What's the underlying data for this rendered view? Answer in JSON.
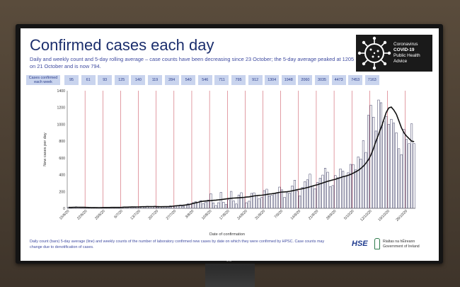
{
  "brand": {
    "tv_logo": "LG"
  },
  "slide": {
    "title": "Confirmed cases each day",
    "subtitle": "Daily and weekly count and 5-day rolling average – case counts have been decreasing since 23 October; the 5-day average peaked at 1205 on 21 October and is now 794.",
    "logo": {
      "line1": "Coronavirus",
      "line2": "COVID-19",
      "line3": "Public Health",
      "line4": "Advice",
      "icon": "virus-icon"
    },
    "weekly_label": "Cases confirmed each week",
    "weekly_counts": [
      "95",
      "61",
      "93",
      "125",
      "140",
      "119",
      "284",
      "540",
      "546",
      "711",
      "795",
      "912",
      "1304",
      "1948",
      "2060",
      "3035",
      "4473",
      "7453",
      "7163"
    ],
    "footer": "Daily count (bars) 5-day average (line) and weekly counts of the number of laboratory confirmed new cases by date on which they were confirmed by HPSC. Case counts may change due to denotification of cases.",
    "org_hse": "HSE",
    "org_gov_line1": "Rialtas na hÉireann",
    "org_gov_line2": "Government of Ireland"
  },
  "colors": {
    "title": "#1b2e6d",
    "text": "#3f4ba0",
    "bar_fill": "#ffffff",
    "bar_stroke": "#2a2a55",
    "line": "#111111",
    "week_divider": "#c43a4a",
    "weekly_cell": "#c9d4ee"
  },
  "chart_data": {
    "type": "bar",
    "xlabel": "Date of confirmation",
    "ylabel": "New cases per day",
    "ylim": [
      0,
      1400
    ],
    "yticks": [
      0,
      200,
      400,
      600,
      800,
      1000,
      1200,
      1400
    ],
    "grid": false,
    "x_tick_labels": [
      "15/6/20",
      "22/6/20",
      "29/6/20",
      "6/7/20",
      "13/7/20",
      "20/7/20",
      "27/7/20",
      "3/8/20",
      "10/8/20",
      "17/8/20",
      "24/8/20",
      "31/8/20",
      "7/9/20",
      "14/9/20",
      "21/9/20",
      "28/9/20",
      "5/10/20",
      "12/10/20",
      "19/10/20",
      "26/10/20"
    ],
    "series": [
      {
        "values": [
          12,
          10,
          14,
          18,
          9,
          11,
          15,
          8,
          7,
          10,
          12,
          6,
          9,
          8,
          14,
          11,
          9,
          12,
          15,
          7,
          10,
          13,
          18,
          12,
          14,
          20,
          11,
          19,
          21,
          17,
          16,
          25,
          18,
          22,
          27,
          14,
          19,
          24,
          16,
          13,
          30,
          22,
          28,
          35,
          41,
          25,
          38,
          55,
          48,
          68,
          80,
          74,
          92,
          56,
          75,
          98,
          174,
          66,
          34,
          67,
          190,
          73,
          45,
          102,
          202,
          88,
          52,
          159,
          186,
          130,
          67,
          85,
          178,
          185,
          154,
          114,
          130,
          211,
          228,
          150,
          157,
          180,
          188,
          253,
          220,
          131,
          186,
          181,
          267,
          335,
          205,
          148,
          250,
          318,
          340,
          407,
          263,
          234,
          308,
          360,
          396,
          478,
          430,
          258,
          271,
          390,
          364,
          470,
          442,
          386,
          423,
          523,
          522,
          458,
          613,
          587,
          806,
          666,
          1107,
          1227,
          1086,
          920,
          1290,
          1257,
          1031,
          1095,
          1000,
          1061,
          1014,
          900,
          710,
          640,
          940,
          820,
          770,
          1006,
          770
        ]
      },
      {
        "values": [
          11,
          11,
          12,
          13,
          13,
          12,
          12,
          11,
          10,
          9,
          9,
          9,
          8,
          9,
          10,
          10,
          10,
          11,
          11,
          11,
          11,
          12,
          14,
          14,
          15,
          16,
          16,
          17,
          18,
          19,
          19,
          20,
          21,
          21,
          21,
          20,
          19,
          19,
          20,
          21,
          22,
          25,
          29,
          31,
          34,
          36,
          40,
          44,
          50,
          58,
          66,
          72,
          80,
          85,
          88,
          90,
          92,
          95,
          98,
          101,
          104,
          108,
          112,
          116,
          120,
          122,
          124,
          126,
          128,
          131,
          134,
          137,
          142,
          148,
          152,
          154,
          156,
          160,
          165,
          170,
          174,
          178,
          184,
          190,
          194,
          196,
          198,
          202,
          208,
          215,
          222,
          228,
          234,
          240,
          248,
          256,
          266,
          274,
          282,
          292,
          302,
          312,
          322,
          330,
          338,
          346,
          356,
          366,
          376,
          384,
          392,
          404,
          418,
          434,
          452,
          474,
          502,
          536,
          578,
          636,
          712,
          800,
          880,
          960,
          1050,
          1140,
          1195,
          1205,
          1170,
          1120,
          1040,
          960,
          900,
          860,
          830,
          800,
          794
        ]
      }
    ]
  }
}
